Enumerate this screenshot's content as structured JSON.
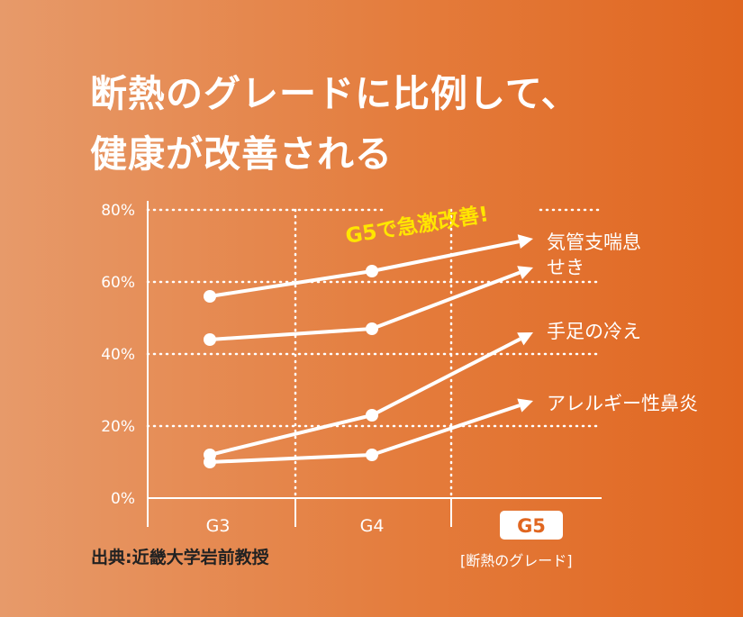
{
  "title_line1": "断熱のグレードに比例して、",
  "title_line2": "健康が改善される",
  "source": "出典:近畿大学岩前教授",
  "callout": "G5で急激改善!",
  "colors": {
    "line": "#ffffff",
    "callout": "#ffe600",
    "background_left": "#e79a6a",
    "background_right": "#e06620"
  },
  "chart_data": {
    "type": "line",
    "categories": [
      "G3",
      "G4",
      "G5"
    ],
    "highlighted_category": "G5",
    "xlabel": "[断熱のグレード]",
    "ylabel": "",
    "ylim": [
      0,
      80
    ],
    "yticks": [
      "0%",
      "20%",
      "40%",
      "60%",
      "80%"
    ],
    "grid": true,
    "series": [
      {
        "name": "気管支喘息",
        "values": [
          56,
          63,
          72
        ]
      },
      {
        "name": "せき",
        "values": [
          44,
          47,
          64
        ]
      },
      {
        "name": "手足の冷え",
        "values": [
          12,
          23,
          46
        ]
      },
      {
        "name": "アレルギー性鼻炎",
        "values": [
          10,
          12,
          27
        ]
      }
    ]
  }
}
